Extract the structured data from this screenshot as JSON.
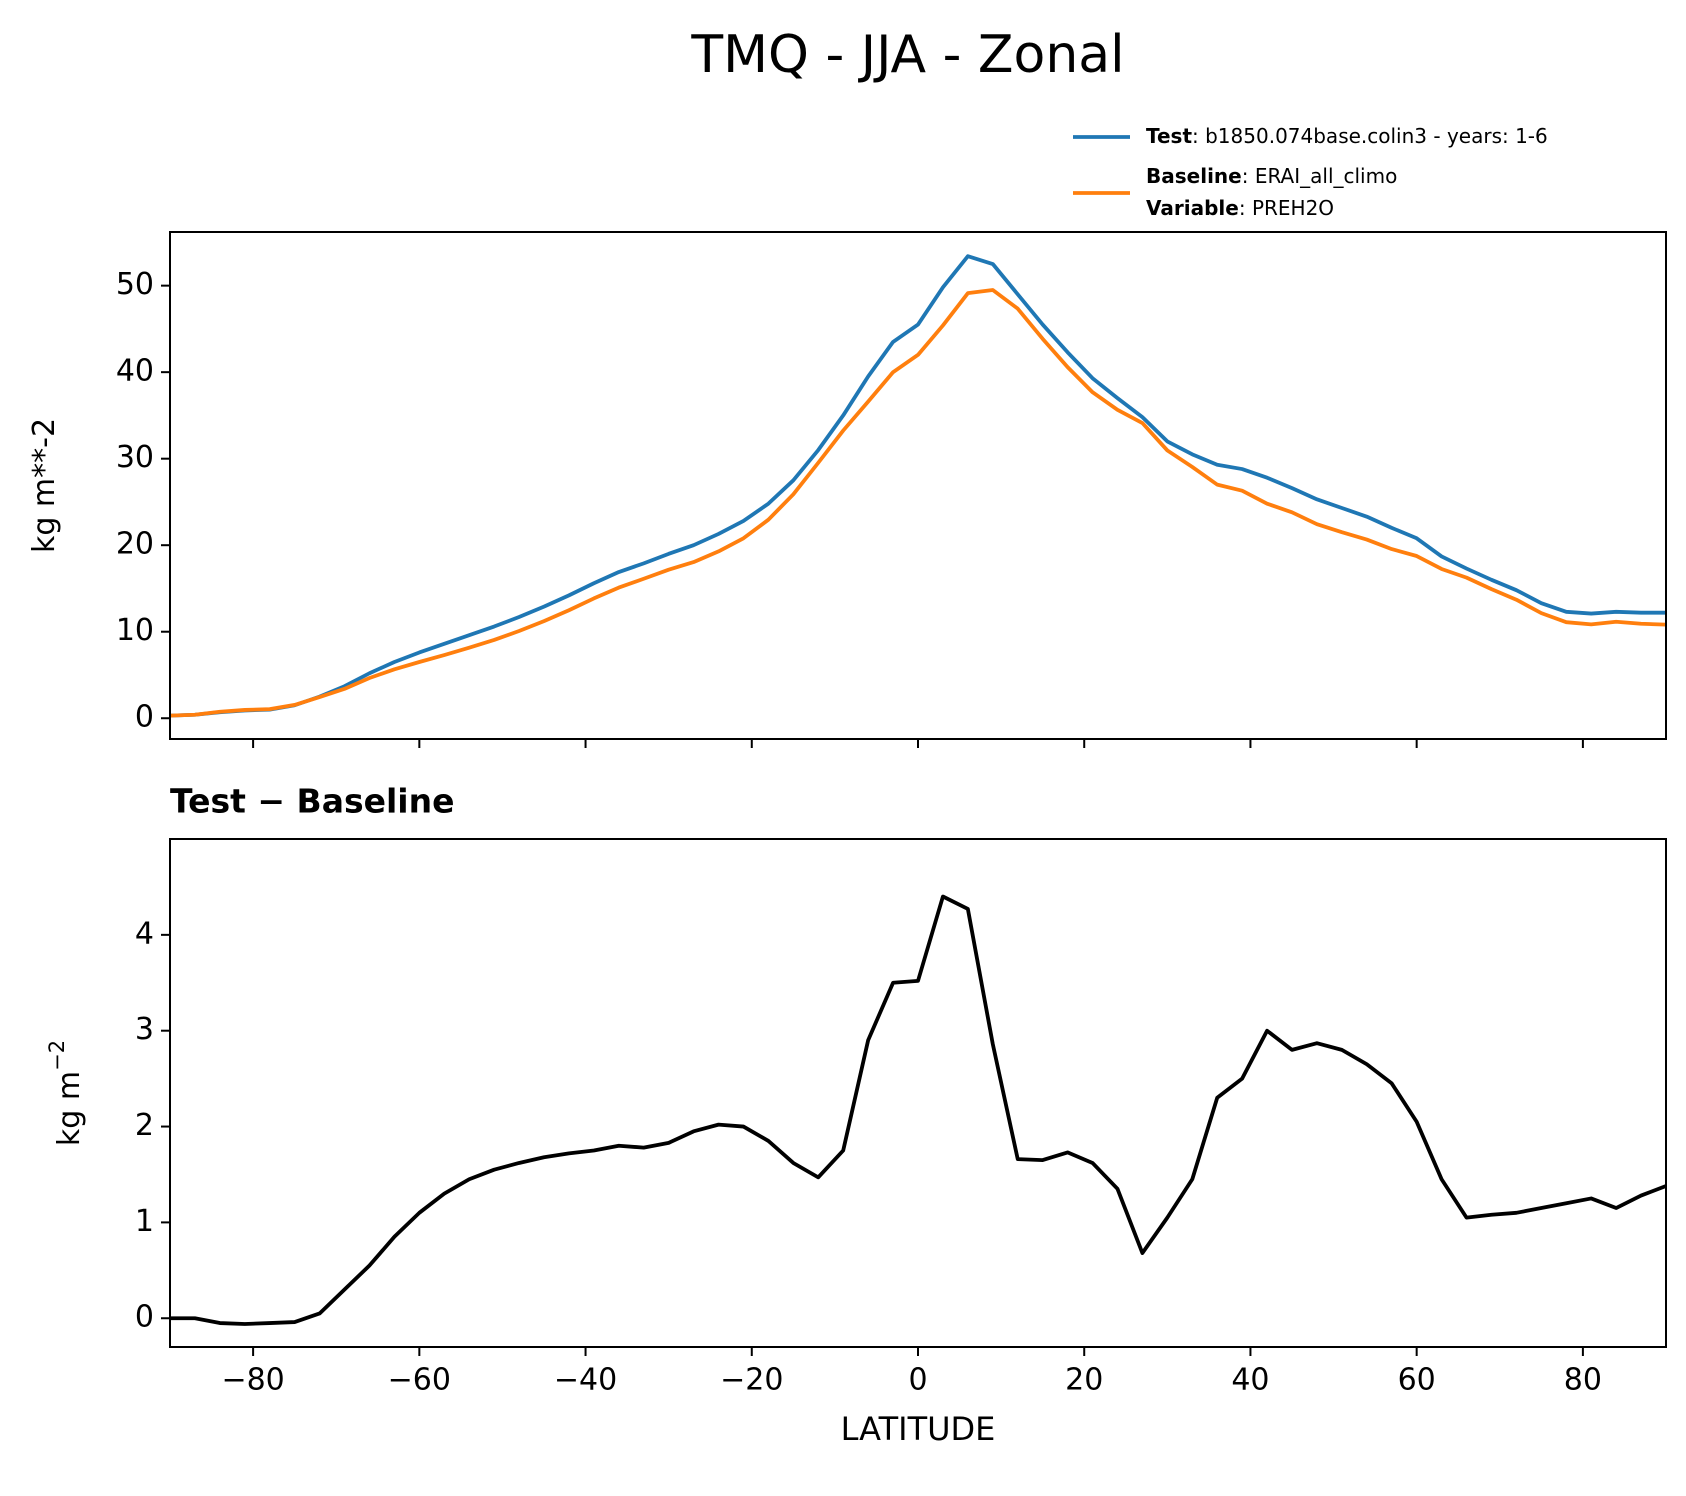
{
  "chart_data": [
    {
      "type": "line",
      "title": "TMQ - JJA - Zonal",
      "ylabel": "kg m**-2",
      "x": [
        -90,
        -87,
        -84,
        -81,
        -78,
        -75,
        -72,
        -69,
        -66,
        -63,
        -60,
        -57,
        -54,
        -51,
        -48,
        -45,
        -42,
        -39,
        -36,
        -33,
        -30,
        -27,
        -24,
        -21,
        -18,
        -15,
        -12,
        -9,
        -6,
        -3,
        0,
        3,
        6,
        9,
        12,
        15,
        18,
        21,
        24,
        27,
        30,
        33,
        36,
        39,
        42,
        45,
        48,
        51,
        54,
        57,
        60,
        63,
        66,
        69,
        72,
        75,
        78,
        81,
        84,
        87,
        90
      ],
      "series": [
        {
          "name": "Test",
          "detail": ": b1850.074base.colin3 - years: 1-6",
          "color": "#1f77b4",
          "values": [
            0.3,
            0.4,
            0.7,
            0.9,
            1.0,
            1.5,
            2.5,
            3.7,
            5.2,
            6.5,
            7.6,
            8.6,
            9.6,
            10.6,
            11.7,
            12.9,
            14.2,
            15.6,
            16.9,
            17.9,
            19.0,
            20.0,
            21.3,
            22.8,
            24.8,
            27.5,
            31.0,
            35.0,
            39.5,
            43.5,
            45.5,
            49.8,
            53.4,
            52.5,
            49.0,
            45.5,
            42.3,
            39.3,
            37.0,
            34.8,
            32.0,
            30.5,
            29.3,
            28.8,
            27.8,
            26.6,
            25.3,
            24.3,
            23.3,
            22.0,
            20.8,
            18.7,
            17.3,
            16.0,
            14.8,
            13.3,
            12.3,
            12.1,
            12.3,
            12.2,
            12.2
          ]
        },
        {
          "name": "Baseline",
          "detail": ": ERAI_all_climo",
          "extra_name": "Variable",
          "extra_detail": ": PREH2O",
          "color": "#ff7f0e",
          "values": [
            0.3,
            0.4,
            0.75,
            0.96,
            1.05,
            1.54,
            2.45,
            3.4,
            4.65,
            5.65,
            6.5,
            7.3,
            8.15,
            9.05,
            10.08,
            11.22,
            12.48,
            13.85,
            15.1,
            16.12,
            17.17,
            18.05,
            19.28,
            20.8,
            22.95,
            25.88,
            29.53,
            33.25,
            36.6,
            40.0,
            42.0,
            45.4,
            49.13,
            49.5,
            47.34,
            43.85,
            40.58,
            37.68,
            35.65,
            34.12,
            30.95,
            29.05,
            27.0,
            26.3,
            24.8,
            23.8,
            22.43,
            21.5,
            20.65,
            19.55,
            18.75,
            17.25,
            16.25,
            14.92,
            13.7,
            12.15,
            11.1,
            10.85,
            11.15,
            10.92,
            10.82
          ]
        }
      ],
      "xlim": [
        -90,
        90
      ],
      "xticks": [
        -80,
        -60,
        -40,
        -20,
        0,
        20,
        40,
        60,
        80
      ],
      "ylim": [
        -2.4,
        56.2
      ],
      "yticks": [
        0,
        10,
        20,
        30,
        40,
        50
      ]
    },
    {
      "type": "line",
      "title": "Test − Baseline",
      "ylabel": "kg m",
      "ylabel_sup": "−2",
      "xlabel": "LATITUDE",
      "x": [
        -90,
        -87,
        -84,
        -81,
        -78,
        -75,
        -72,
        -69,
        -66,
        -63,
        -60,
        -57,
        -54,
        -51,
        -48,
        -45,
        -42,
        -39,
        -36,
        -33,
        -30,
        -27,
        -24,
        -21,
        -18,
        -15,
        -12,
        -9,
        -6,
        -3,
        0,
        3,
        6,
        9,
        12,
        15,
        18,
        21,
        24,
        27,
        30,
        33,
        36,
        39,
        42,
        45,
        48,
        51,
        54,
        57,
        60,
        63,
        66,
        69,
        72,
        75,
        78,
        81,
        84,
        87,
        90
      ],
      "series": [
        {
          "color": "#000000",
          "values": [
            0,
            0,
            -0.05,
            -0.06,
            -0.05,
            -0.04,
            0.05,
            0.3,
            0.55,
            0.85,
            1.1,
            1.3,
            1.45,
            1.55,
            1.62,
            1.68,
            1.72,
            1.75,
            1.8,
            1.78,
            1.83,
            1.95,
            2.02,
            2.0,
            1.85,
            1.62,
            1.47,
            1.75,
            2.9,
            3.5,
            3.52,
            4.4,
            4.27,
            2.86,
            1.66,
            1.65,
            1.73,
            1.62,
            1.35,
            0.68,
            1.05,
            1.45,
            2.3,
            2.5,
            3.0,
            2.8,
            2.87,
            2.8,
            2.65,
            2.45,
            2.05,
            1.45,
            1.05,
            1.08,
            1.1,
            1.15,
            1.2,
            1.25,
            1.15,
            1.28,
            1.38
          ]
        }
      ],
      "xlim": [
        -90,
        90
      ],
      "xticks": [
        {
          "value": -80,
          "label": "−80"
        },
        {
          "value": -60,
          "label": "−60"
        },
        {
          "value": -40,
          "label": "−40"
        },
        {
          "value": -20,
          "label": "−20"
        },
        0,
        20,
        40,
        60,
        80
      ],
      "ylim": [
        -0.3,
        5.0
      ],
      "yticks": [
        0,
        1,
        2,
        3,
        4
      ]
    }
  ]
}
